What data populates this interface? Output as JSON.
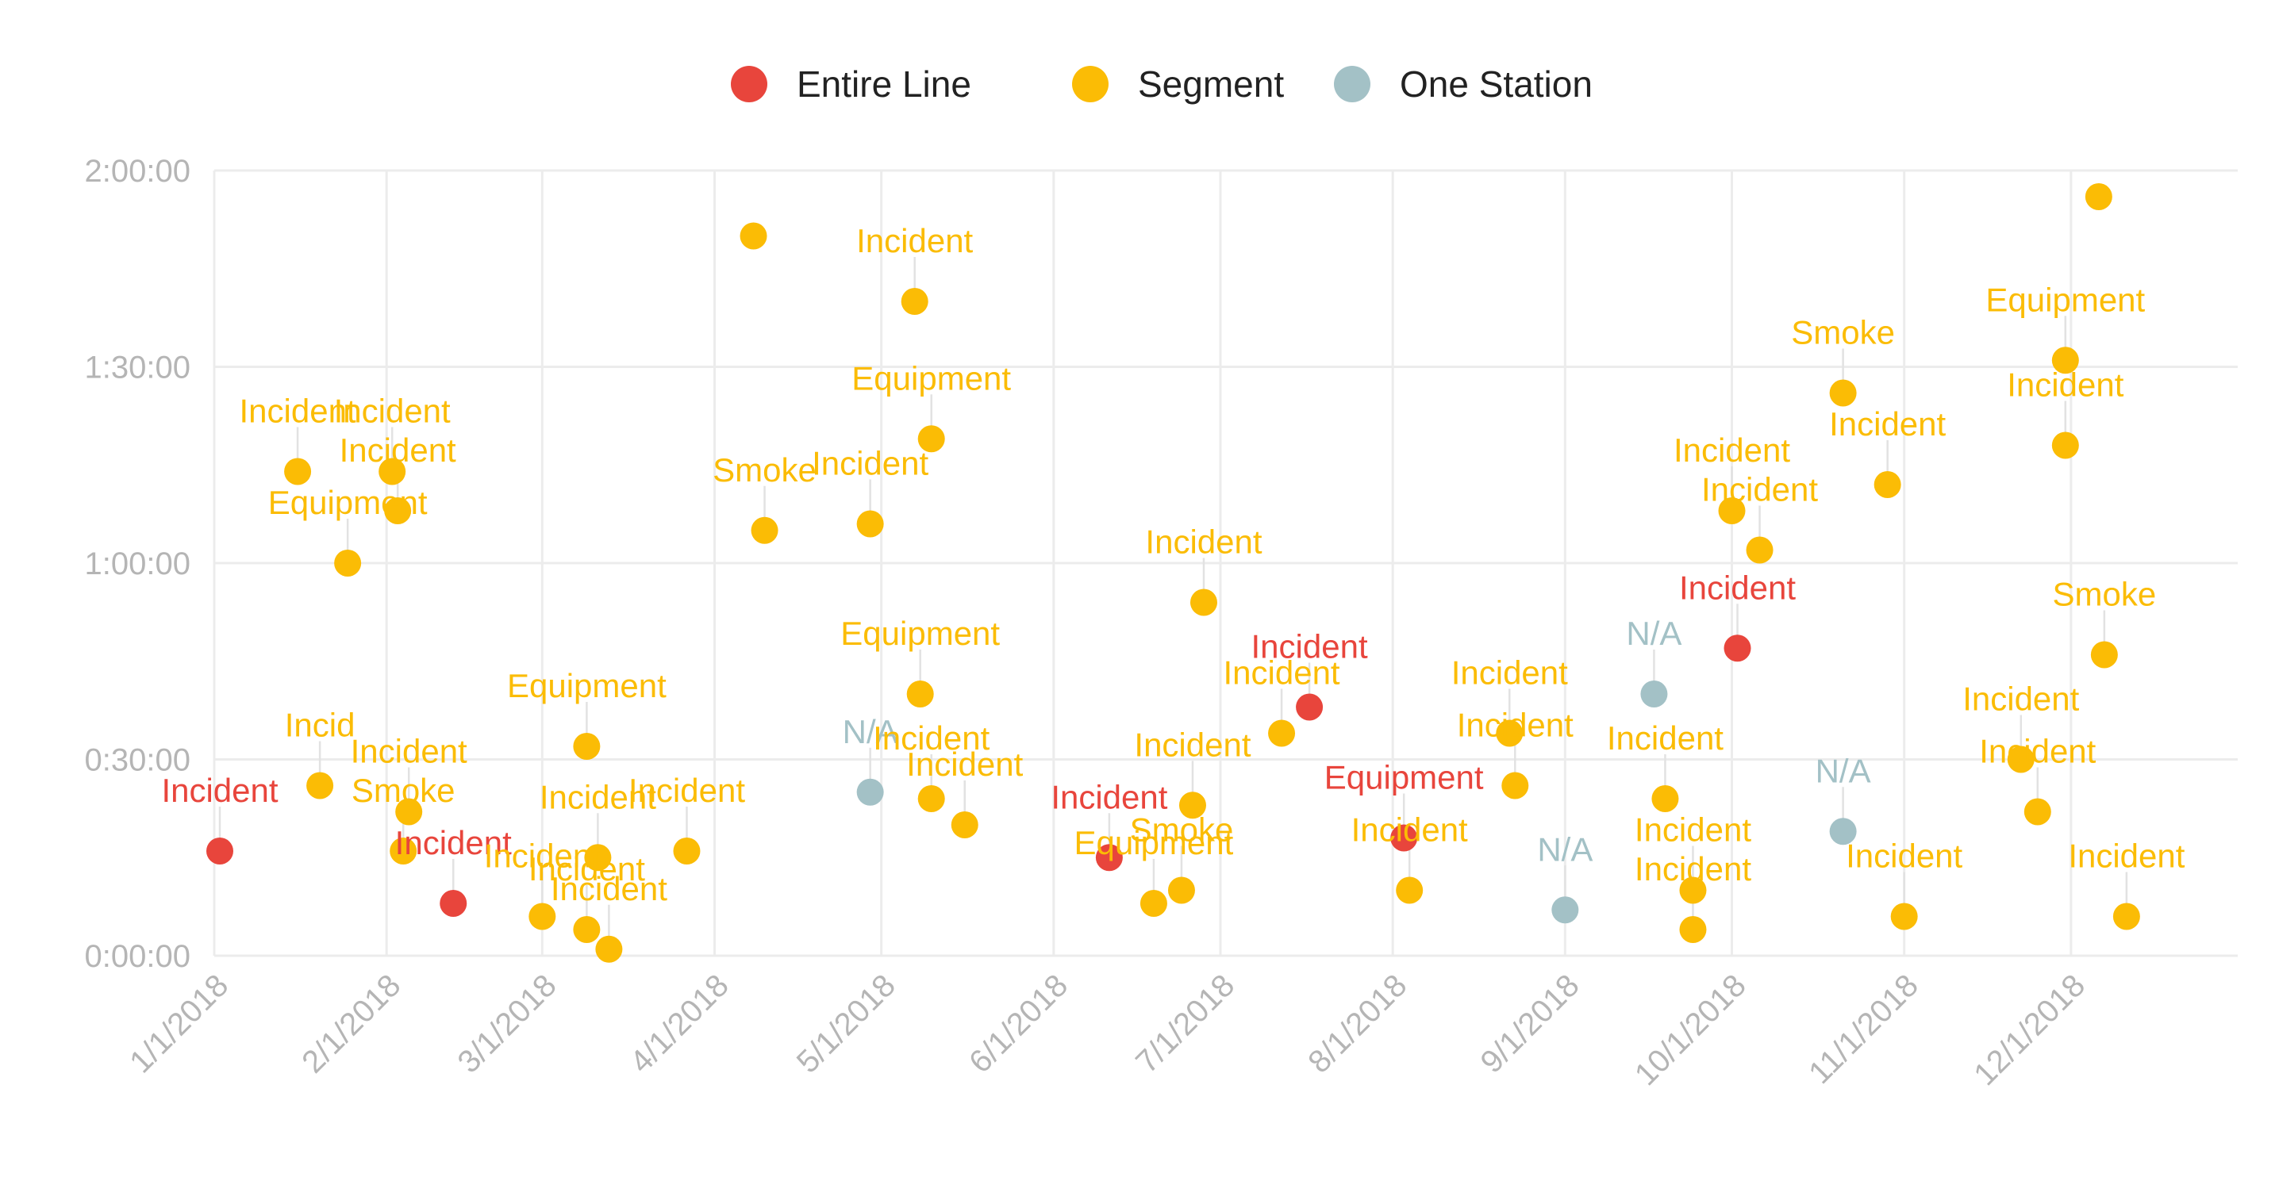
{
  "chart_data": {
    "type": "scatter",
    "x_type": "date",
    "y_type": "duration",
    "ylim": [
      "0:00:00",
      "2:00:00"
    ],
    "yticks": [
      "0:00:00",
      "0:30:00",
      "1:00:00",
      "1:30:00",
      "2:00:00"
    ],
    "xticks": [
      "1/1/2018",
      "2/1/2018",
      "3/1/2018",
      "4/1/2018",
      "5/1/2018",
      "6/1/2018",
      "7/1/2018",
      "8/1/2018",
      "9/1/2018",
      "10/1/2018",
      "11/1/2018",
      "12/1/2018"
    ],
    "grid": true,
    "legend_position": "top",
    "series": [
      {
        "name": "Entire Line",
        "color": "#e8453c"
      },
      {
        "name": "Segment",
        "color": "#fbbc05"
      },
      {
        "name": "One Station",
        "color": "#a3c1c6"
      }
    ],
    "points": [
      {
        "x": "2018-01-02",
        "y": "0:16:00",
        "series": "Entire Line",
        "label": "Incident"
      },
      {
        "x": "2018-01-16",
        "y": "1:14:00",
        "series": "Segment",
        "label": "Incident"
      },
      {
        "x": "2018-01-20",
        "y": "0:26:00",
        "series": "Segment",
        "label": "Incid"
      },
      {
        "x": "2018-01-25",
        "y": "1:00:00",
        "series": "Segment",
        "label": "Equipment"
      },
      {
        "x": "2018-02-02",
        "y": "1:14:00",
        "series": "Segment",
        "label": "Incident"
      },
      {
        "x": "2018-02-03",
        "y": "1:08:00",
        "series": "Segment",
        "label": "Incident"
      },
      {
        "x": "2018-02-04",
        "y": "0:16:00",
        "series": "Segment",
        "label": "Smoke"
      },
      {
        "x": "2018-02-05",
        "y": "0:22:00",
        "series": "Segment",
        "label": "Incident"
      },
      {
        "x": "2018-02-13",
        "y": "0:08:00",
        "series": "Entire Line",
        "label": "Incident"
      },
      {
        "x": "2018-03-01",
        "y": "0:06:00",
        "series": "Segment",
        "label": "Incident"
      },
      {
        "x": "2018-03-09",
        "y": "0:32:00",
        "series": "Segment",
        "label": "Equipment"
      },
      {
        "x": "2018-03-09",
        "y": "0:04:00",
        "series": "Segment",
        "label": "Incident"
      },
      {
        "x": "2018-03-11",
        "y": "0:15:00",
        "series": "Segment",
        "label": "Incident"
      },
      {
        "x": "2018-03-13",
        "y": "0:01:00",
        "series": "Segment",
        "label": "Incident"
      },
      {
        "x": "2018-03-27",
        "y": "0:16:00",
        "series": "Segment",
        "label": "Incident"
      },
      {
        "x": "2018-04-08",
        "y": "1:50:00",
        "series": "Segment",
        "label": ""
      },
      {
        "x": "2018-04-10",
        "y": "1:05:00",
        "series": "Segment",
        "label": "Smoke"
      },
      {
        "x": "2018-04-29",
        "y": "1:06:00",
        "series": "Segment",
        "label": "Incident"
      },
      {
        "x": "2018-04-29",
        "y": "0:25:00",
        "series": "One Station",
        "label": "N/A"
      },
      {
        "x": "2018-05-07",
        "y": "1:40:00",
        "series": "Segment",
        "label": "Incident"
      },
      {
        "x": "2018-05-08",
        "y": "0:40:00",
        "series": "Segment",
        "label": "Equipment"
      },
      {
        "x": "2018-05-10",
        "y": "1:19:00",
        "series": "Segment",
        "label": "Equipment"
      },
      {
        "x": "2018-05-10",
        "y": "0:24:00",
        "series": "Segment",
        "label": "Incident"
      },
      {
        "x": "2018-05-16",
        "y": "0:20:00",
        "series": "Segment",
        "label": "Incident"
      },
      {
        "x": "2018-06-11",
        "y": "0:15:00",
        "series": "Entire Line",
        "label": "Incident"
      },
      {
        "x": "2018-06-19",
        "y": "0:08:00",
        "series": "Segment",
        "label": "Equipment"
      },
      {
        "x": "2018-06-24",
        "y": "0:10:00",
        "series": "Segment",
        "label": "Smoke"
      },
      {
        "x": "2018-06-26",
        "y": "0:23:00",
        "series": "Segment",
        "label": "Incident"
      },
      {
        "x": "2018-06-28",
        "y": "0:54:00",
        "series": "Segment",
        "label": "Incident"
      },
      {
        "x": "2018-07-12",
        "y": "0:34:00",
        "series": "Segment",
        "label": "Incident"
      },
      {
        "x": "2018-07-17",
        "y": "0:38:00",
        "series": "Entire Line",
        "label": "Incident"
      },
      {
        "x": "2018-08-03",
        "y": "0:18:00",
        "series": "Entire Line",
        "label": "Equipment"
      },
      {
        "x": "2018-08-04",
        "y": "0:10:00",
        "series": "Segment",
        "label": "Incident"
      },
      {
        "x": "2018-08-22",
        "y": "0:34:00",
        "series": "Segment",
        "label": "Incident"
      },
      {
        "x": "2018-08-23",
        "y": "0:26:00",
        "series": "Segment",
        "label": "Incident"
      },
      {
        "x": "2018-09-01",
        "y": "0:07:00",
        "series": "One Station",
        "label": "N/A"
      },
      {
        "x": "2018-09-17",
        "y": "0:40:00",
        "series": "One Station",
        "label": "N/A"
      },
      {
        "x": "2018-09-19",
        "y": "0:24:00",
        "series": "Segment",
        "label": "Incident"
      },
      {
        "x": "2018-09-24",
        "y": "0:10:00",
        "series": "Segment",
        "label": "Incident"
      },
      {
        "x": "2018-09-24",
        "y": "0:04:00",
        "series": "Segment",
        "label": "Incident"
      },
      {
        "x": "2018-10-01",
        "y": "1:08:00",
        "series": "Segment",
        "label": "Incident"
      },
      {
        "x": "2018-10-02",
        "y": "0:47:00",
        "series": "Entire Line",
        "label": "Incident"
      },
      {
        "x": "2018-10-06",
        "y": "1:02:00",
        "series": "Segment",
        "label": "Incident"
      },
      {
        "x": "2018-10-21",
        "y": "1:26:00",
        "series": "Segment",
        "label": "Smoke"
      },
      {
        "x": "2018-10-21",
        "y": "0:19:00",
        "series": "One Station",
        "label": "N/A"
      },
      {
        "x": "2018-10-29",
        "y": "1:12:00",
        "series": "Segment",
        "label": "Incident"
      },
      {
        "x": "2018-11-01",
        "y": "0:06:00",
        "series": "Segment",
        "label": "Incident"
      },
      {
        "x": "2018-11-22",
        "y": "0:30:00",
        "series": "Segment",
        "label": "Incident"
      },
      {
        "x": "2018-11-25",
        "y": "0:22:00",
        "series": "Segment",
        "label": "Incident"
      },
      {
        "x": "2018-11-30",
        "y": "1:31:00",
        "series": "Segment",
        "label": "Equipment"
      },
      {
        "x": "2018-11-30",
        "y": "1:18:00",
        "series": "Segment",
        "label": "Incident"
      },
      {
        "x": "2018-12-06",
        "y": "1:56:00",
        "series": "Segment",
        "label": ""
      },
      {
        "x": "2018-12-07",
        "y": "0:46:00",
        "series": "Segment",
        "label": "Smoke"
      },
      {
        "x": "2018-12-11",
        "y": "0:06:00",
        "series": "Segment",
        "label": "Incident"
      }
    ]
  }
}
